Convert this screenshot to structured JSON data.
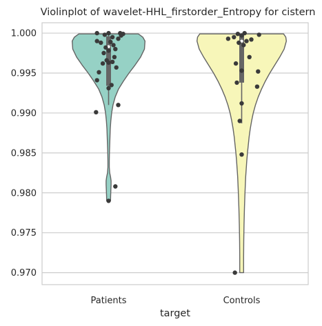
{
  "chart_data": {
    "type": "violin",
    "title": "Violinplot of wavelet-HHL_firstorder_Entropy for cistern",
    "xlabel": "target",
    "ylabel": "",
    "categories": [
      "Patients",
      "Controls"
    ],
    "ylim": [
      0.9685,
      1.0013
    ],
    "yticks": [
      0.97,
      0.975,
      0.98,
      0.985,
      0.99,
      0.995,
      1.0
    ],
    "ytick_labels": [
      "0.970",
      "0.975",
      "0.980",
      "0.985",
      "0.990",
      "0.995",
      "1.000"
    ],
    "grid": true,
    "colors": {
      "Patients": "#96d1c5",
      "Controls": "#f7f6b9",
      "outline": "#646464",
      "points": "#3a3a3a",
      "box": "#656565",
      "grid": "#cccccc"
    },
    "violins": [
      {
        "category": "Patients",
        "range": [
          0.979,
          0.9999
        ],
        "quartiles": {
          "q1": 0.9934,
          "median": 0.9983,
          "q3": 0.9996
        },
        "whisker": [
          0.991,
          0.9999
        ],
        "profile": [
          [
            0.9999,
            0.54
          ],
          [
            0.9995,
            0.62
          ],
          [
            0.999,
            0.66
          ],
          [
            0.998,
            0.65
          ],
          [
            0.997,
            0.58
          ],
          [
            0.996,
            0.48
          ],
          [
            0.995,
            0.37
          ],
          [
            0.994,
            0.27
          ],
          [
            0.993,
            0.18
          ],
          [
            0.992,
            0.12
          ],
          [
            0.991,
            0.08
          ],
          [
            0.99,
            0.055
          ],
          [
            0.989,
            0.04
          ],
          [
            0.988,
            0.03
          ],
          [
            0.987,
            0.025
          ],
          [
            0.986,
            0.02
          ],
          [
            0.985,
            0.015
          ],
          [
            0.984,
            0.012
          ],
          [
            0.9832,
            0.012
          ],
          [
            0.9825,
            0.02
          ],
          [
            0.982,
            0.035
          ],
          [
            0.9815,
            0.045
          ],
          [
            0.981,
            0.045
          ],
          [
            0.9802,
            0.04
          ],
          [
            0.9795,
            0.036
          ],
          [
            0.979,
            0.035
          ]
        ],
        "points": [
          1.0,
          1.0,
          1.0,
          0.9999,
          0.9998,
          0.9997,
          0.9995,
          0.9993,
          0.999,
          0.9989,
          0.9988,
          0.9985,
          0.9982,
          0.998,
          0.9978,
          0.9975,
          0.997,
          0.9966,
          0.9964,
          0.9963,
          0.9962,
          0.9957,
          0.9951,
          0.9941,
          0.9935,
          0.9931,
          0.991,
          0.9901,
          0.9808,
          0.979
        ],
        "jitter": [
          0.0,
          -0.12,
          0.12,
          0.15,
          -0.04,
          0.13,
          0.04,
          0.1,
          -0.12,
          0.02,
          -0.08,
          0.05,
          -0.03,
          0.07,
          0.0,
          -0.05,
          0.06,
          -0.02,
          0.04,
          0.0,
          -0.06,
          0.08,
          -0.1,
          -0.12,
          0.03,
          0.0,
          0.1,
          -0.13,
          0.07,
          0.0
        ]
      },
      {
        "category": "Controls",
        "range": [
          0.97,
          0.9999
        ],
        "quartiles": {
          "q1": 0.9938,
          "median": 0.999,
          "q3": 0.9998
        },
        "whisker": [
          0.9887,
          0.9999
        ],
        "profile": [
          [
            0.9999,
            0.76
          ],
          [
            0.9995,
            0.8
          ],
          [
            0.999,
            0.81
          ],
          [
            0.998,
            0.77
          ],
          [
            0.997,
            0.69
          ],
          [
            0.996,
            0.6
          ],
          [
            0.995,
            0.51
          ],
          [
            0.994,
            0.43
          ],
          [
            0.993,
            0.36
          ],
          [
            0.992,
            0.3
          ],
          [
            0.991,
            0.25
          ],
          [
            0.99,
            0.21
          ],
          [
            0.989,
            0.18
          ],
          [
            0.988,
            0.155
          ],
          [
            0.987,
            0.135
          ],
          [
            0.986,
            0.12
          ],
          [
            0.985,
            0.105
          ],
          [
            0.984,
            0.092
          ],
          [
            0.983,
            0.082
          ],
          [
            0.982,
            0.073
          ],
          [
            0.981,
            0.066
          ],
          [
            0.98,
            0.06
          ],
          [
            0.979,
            0.055
          ],
          [
            0.978,
            0.05
          ],
          [
            0.977,
            0.046
          ],
          [
            0.976,
            0.043
          ],
          [
            0.975,
            0.04
          ],
          [
            0.974,
            0.038
          ],
          [
            0.973,
            0.036
          ],
          [
            0.972,
            0.035
          ],
          [
            0.971,
            0.035
          ],
          [
            0.97,
            0.035
          ]
        ],
        "points": [
          1.0,
          0.9999,
          0.9998,
          0.9997,
          0.9995,
          0.9993,
          0.9992,
          0.999,
          0.9988,
          0.9985,
          0.997,
          0.9962,
          0.9953,
          0.9952,
          0.9938,
          0.9933,
          0.9912,
          0.989,
          0.9848,
          0.97
        ],
        "jitter": [
          0.03,
          -0.04,
          0.18,
          0.0,
          -0.08,
          -0.14,
          0.1,
          0.05,
          -0.03,
          0.02,
          0.08,
          -0.06,
          0.0,
          0.17,
          -0.05,
          0.16,
          0.0,
          -0.02,
          0.0,
          -0.07
        ]
      }
    ]
  }
}
